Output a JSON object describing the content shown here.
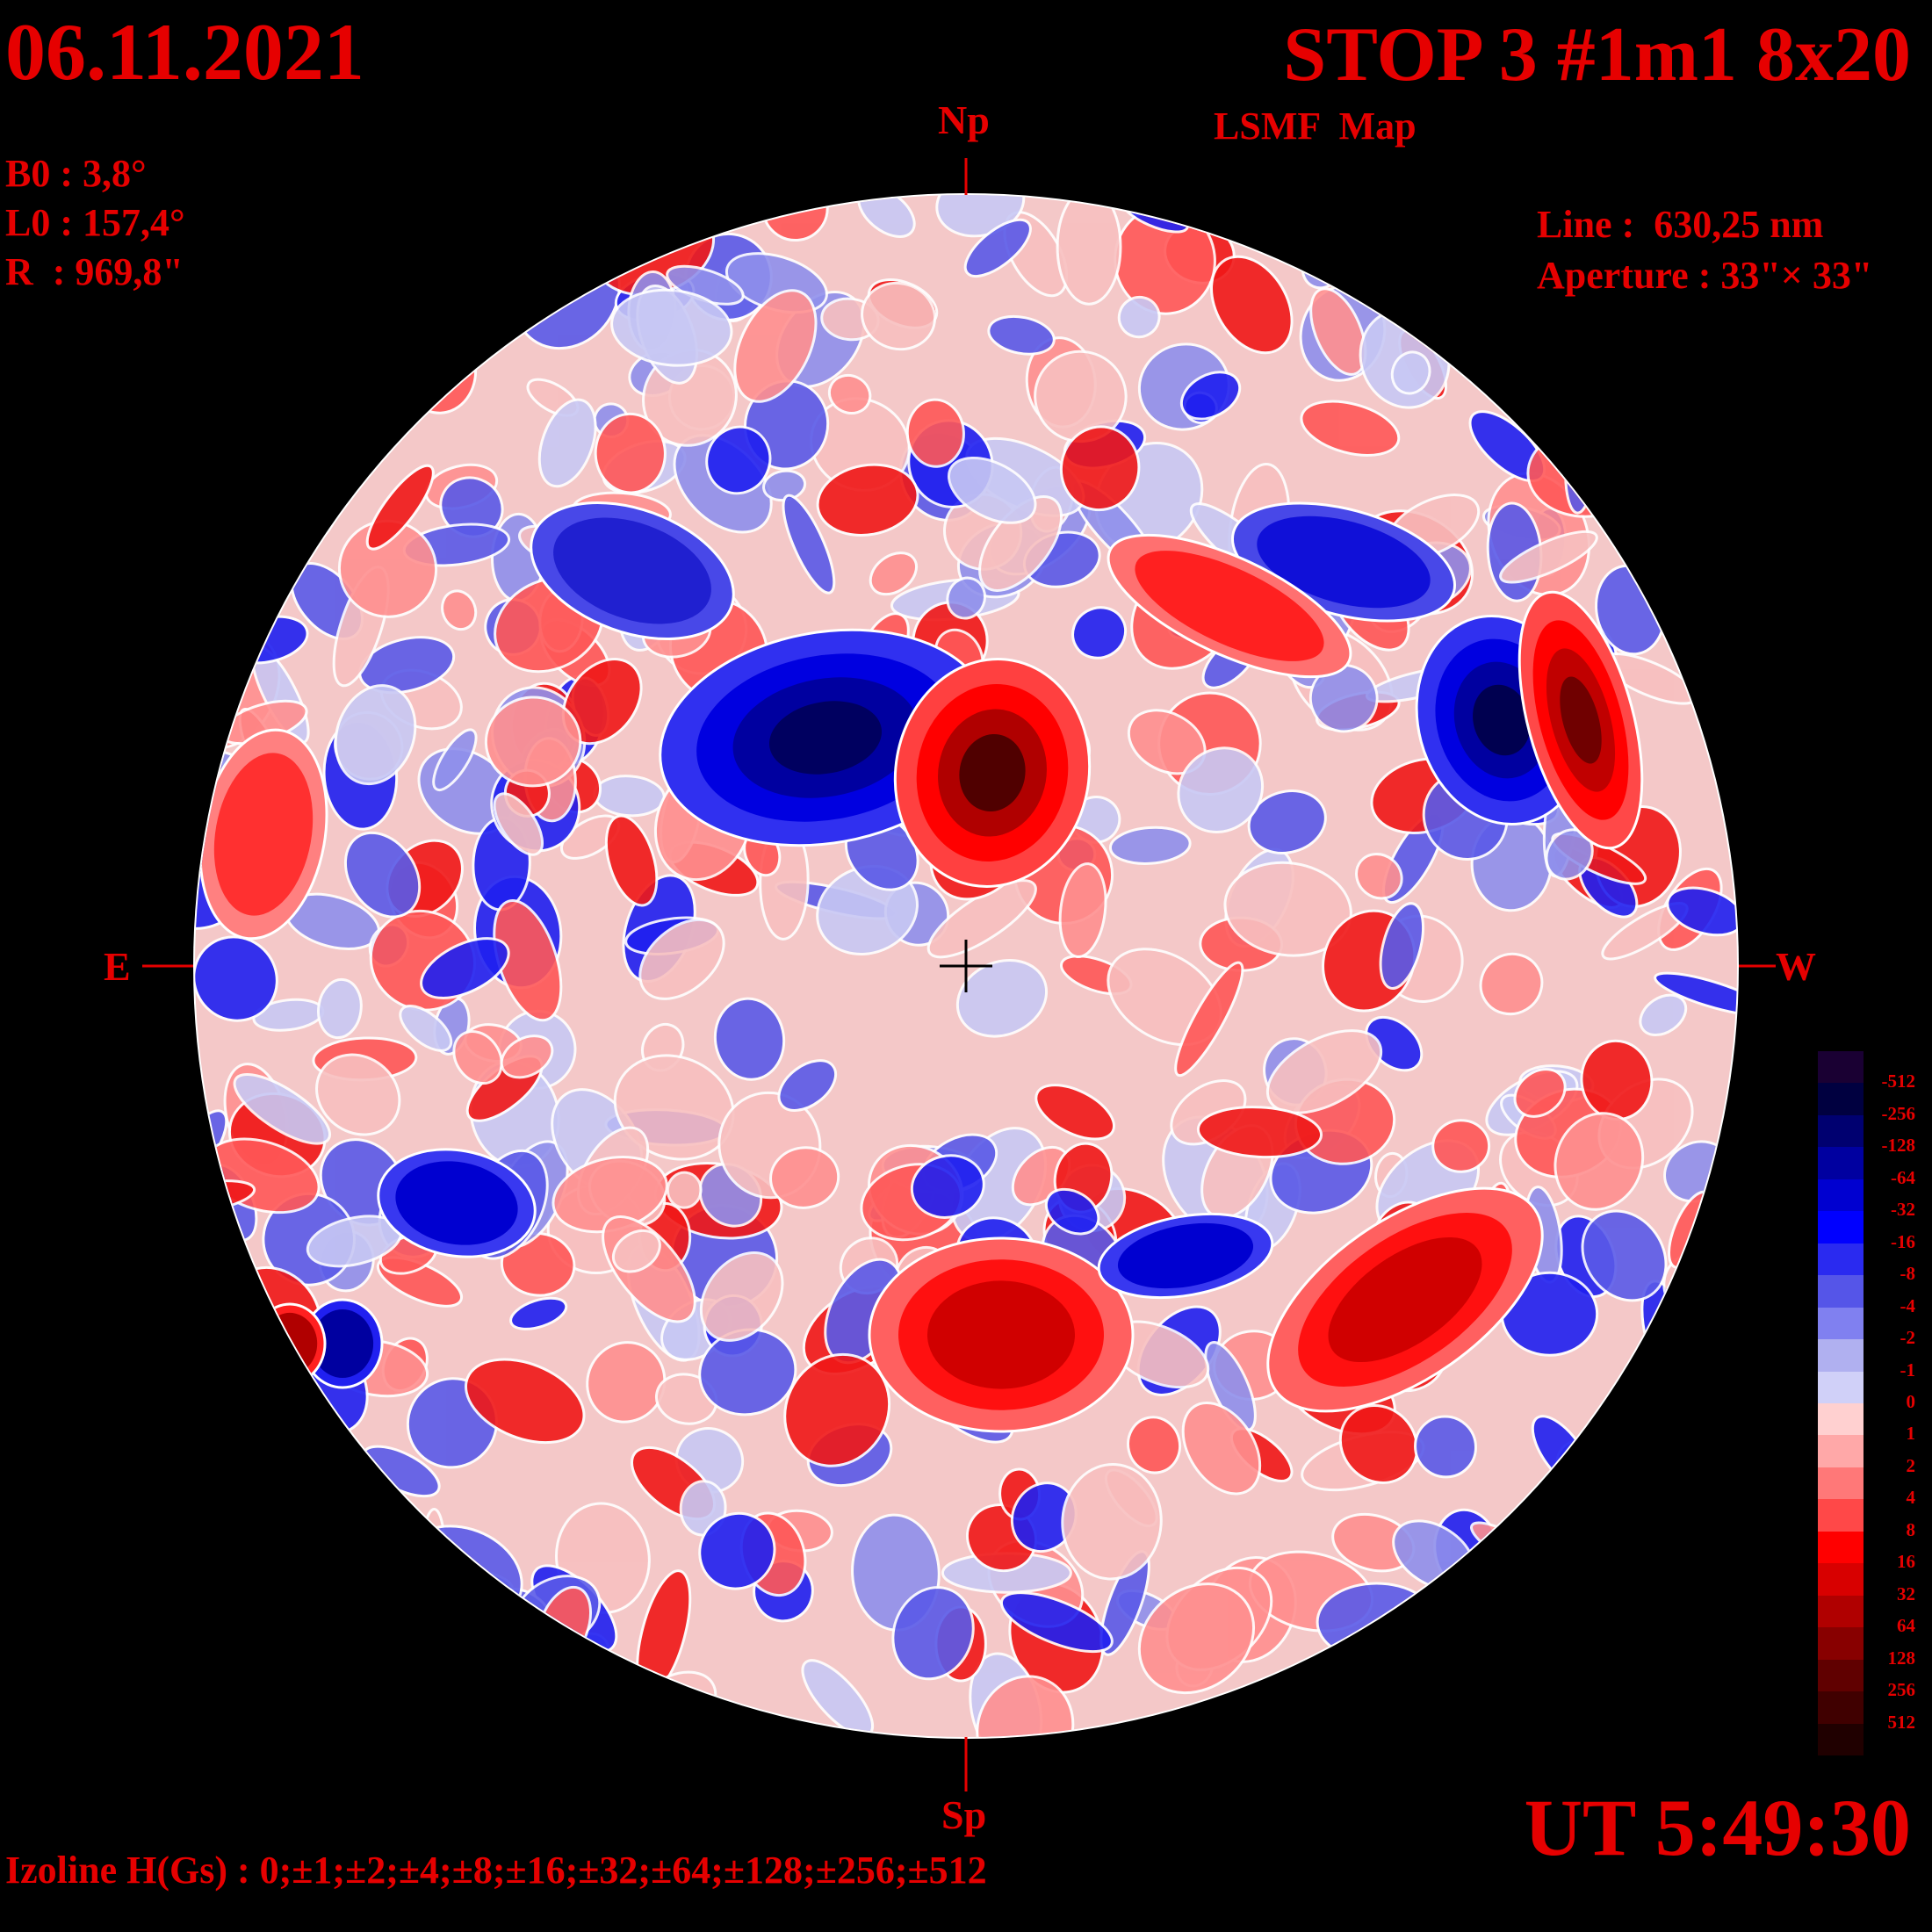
{
  "header": {
    "date": "06.11.2021",
    "title": "STOP 3 #1m1 8x20",
    "map_type": "LSMF  Map"
  },
  "params": {
    "b0": "B0 : 3,8°",
    "l0": "L0 : 157,4°",
    "radius": "R  : 969,8\"",
    "line": "Line :  630,25 nm",
    "aperture": "Aperture : 33\"× 33\""
  },
  "directions": {
    "north": "Np",
    "south": "Sp",
    "east": "E",
    "west": "W"
  },
  "time": "UT 5:49:30",
  "izoline": "Izoline H(Gs) : 0;±1;±2;±4;±8;±16;±32;±64;±128;±256;±512",
  "colorbar": {
    "colors": [
      "#1a0033",
      "#000040",
      "#000070",
      "#0000a0",
      "#0000d0",
      "#0000ff",
      "#2a2af0",
      "#5555e8",
      "#8080f0",
      "#b0b0f0",
      "#d0d0f8",
      "#ffd0d0",
      "#ffa8a8",
      "#ff7878",
      "#ff4848",
      "#ff0000",
      "#d80000",
      "#b00000",
      "#880000",
      "#600000",
      "#400000",
      "#200000"
    ],
    "labels": [
      "-512",
      "-256",
      "-128",
      "-64",
      "-32",
      "-16",
      "-8",
      "-4",
      "-2",
      "-1",
      "0",
      "1",
      "2",
      "4",
      "8",
      "16",
      "32",
      "64",
      "128",
      "256",
      "512"
    ]
  },
  "regions": [
    {
      "polarity": "negative",
      "strength": "strong",
      "location": "north-center-left"
    },
    {
      "polarity": "positive",
      "strength": "strong",
      "location": "north-center"
    },
    {
      "polarity": "negative",
      "strength": "strong",
      "location": "north-west"
    },
    {
      "polarity": "positive",
      "strength": "strong",
      "location": "north-west limb"
    },
    {
      "polarity": "positive",
      "strength": "medium",
      "location": "south-center"
    },
    {
      "polarity": "positive",
      "strength": "medium",
      "location": "south-west"
    },
    {
      "polarity": "negative",
      "strength": "medium",
      "location": "south-east limb"
    },
    {
      "polarity": "positive",
      "strength": "medium",
      "location": "east limb"
    }
  ]
}
